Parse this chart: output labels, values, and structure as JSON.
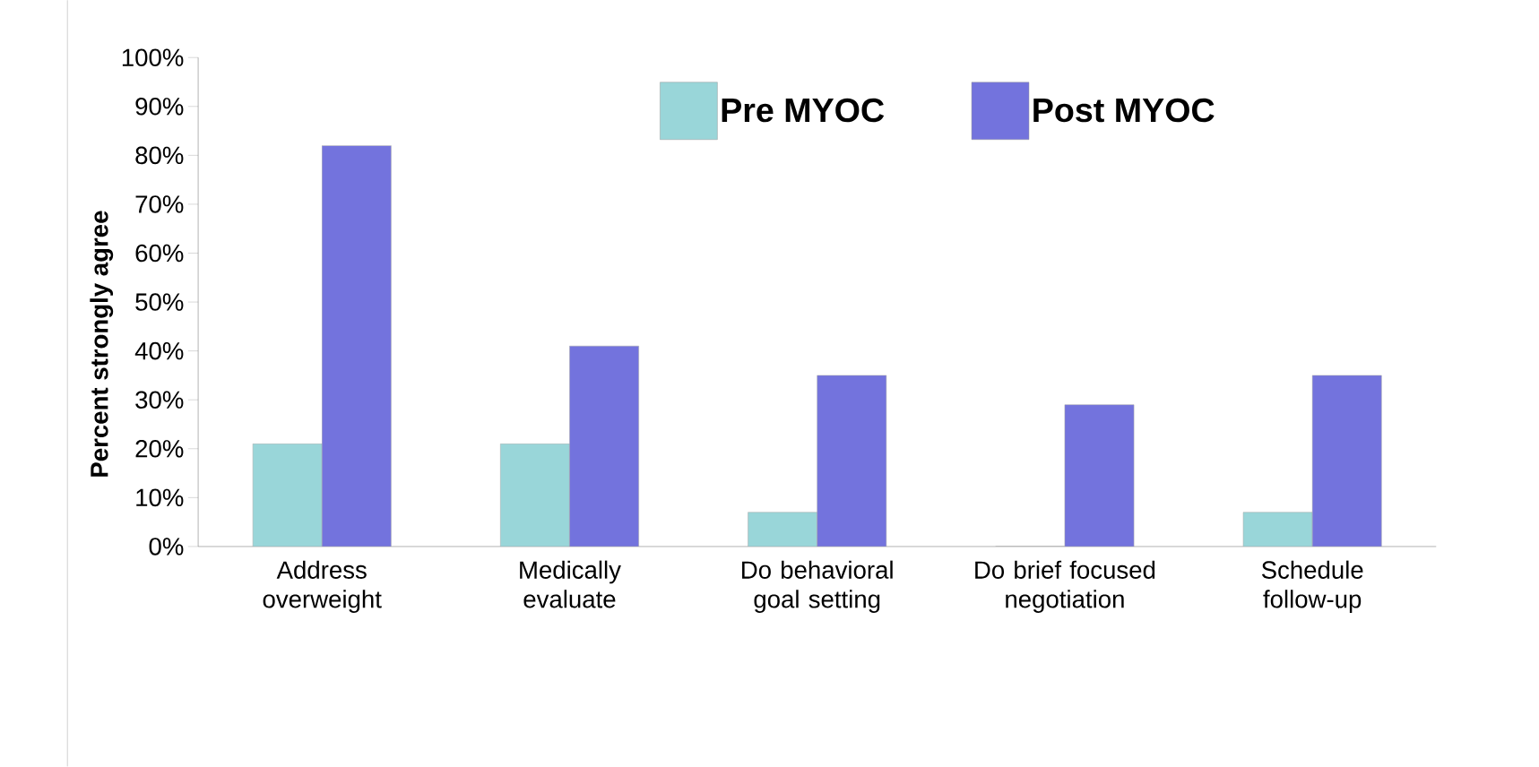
{
  "chart_data": {
    "type": "bar",
    "ylabel": "Percent strongly agree",
    "categories": [
      "Address overweight",
      "Medically evaluate",
      "Do behavioral goal setting",
      "Do brief focused negotiation",
      "Schedule follow-up"
    ],
    "series": [
      {
        "name": "Pre MYOC",
        "color": "#99d6d9",
        "values": [
          21,
          21,
          7,
          0,
          7
        ]
      },
      {
        "name": "Post MYOC",
        "color": "#7373dd",
        "values": [
          82,
          41,
          35,
          29,
          35
        ]
      }
    ],
    "ylim": [
      0,
      100
    ],
    "yticks": [
      {
        "value": 0,
        "label": "0%"
      },
      {
        "value": 10,
        "label": "10%"
      },
      {
        "value": 20,
        "label": "20%"
      },
      {
        "value": 30,
        "label": "30%"
      },
      {
        "value": 40,
        "label": "40%"
      },
      {
        "value": 50,
        "label": "50%"
      },
      {
        "value": 60,
        "label": "60%"
      },
      {
        "value": 70,
        "label": "70%"
      },
      {
        "value": 80,
        "label": "80%"
      },
      {
        "value": 90,
        "label": "90%"
      },
      {
        "value": 100,
        "label": "100%"
      }
    ],
    "grid": false,
    "legend": "top right"
  }
}
